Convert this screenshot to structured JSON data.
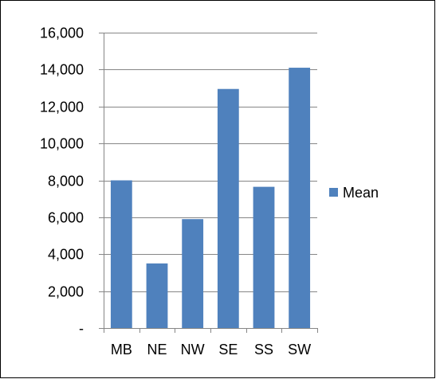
{
  "chart_data": {
    "type": "bar",
    "categories": [
      "MB",
      "NE",
      "NW",
      "SE",
      "SS",
      "SW"
    ],
    "series": [
      {
        "name": "Mean",
        "values": [
          8000,
          3500,
          5900,
          12950,
          7650,
          14100
        ],
        "color": "#4F81BD"
      }
    ],
    "ylim": [
      0,
      16000
    ],
    "yticks": [
      0,
      2000,
      4000,
      6000,
      8000,
      10000,
      12000,
      14000,
      16000
    ],
    "ytick_labels": [
      "-",
      "2,000",
      "4,000",
      "6,000",
      "8,000",
      "10,000",
      "12,000",
      "14,000",
      "16,000"
    ],
    "title": "",
    "xlabel": "",
    "ylabel": "",
    "grid": true,
    "legend_position": "right"
  },
  "colors": {
    "grid": "#868686",
    "axis": "#868686",
    "frame": "#000000"
  }
}
